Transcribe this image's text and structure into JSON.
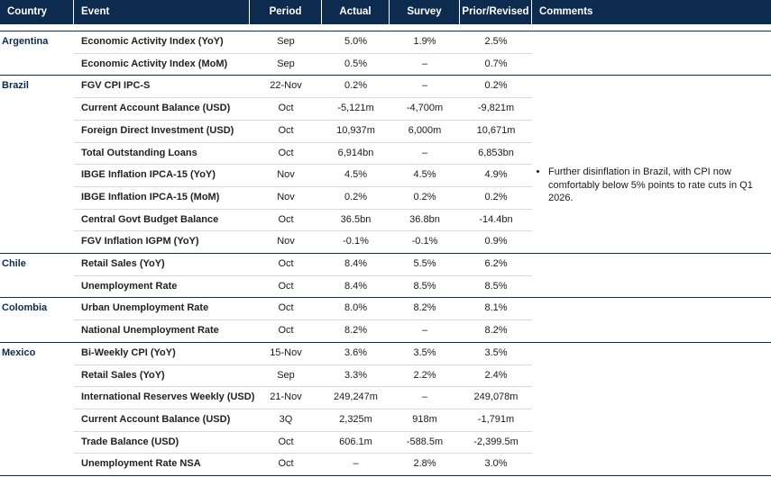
{
  "header": {
    "columns": [
      "Country",
      "Event",
      "Period",
      "Actual",
      "Survey",
      "Prior/Revised",
      "Comments"
    ]
  },
  "groups": [
    {
      "country": "Argentina",
      "rows": [
        [
          "Economic Activity Index (YoY)",
          "Sep",
          "5.0%",
          "1.9%",
          "2.5%"
        ],
        [
          "Economic Activity Index (MoM)",
          "Sep",
          "0.5%",
          "–",
          "0.7%"
        ]
      ]
    },
    {
      "country": "Brazil",
      "rows": [
        [
          "FGV CPI IPC-S",
          "22-Nov",
          "0.2%",
          "–",
          "0.2%"
        ],
        [
          "Current Account Balance (USD)",
          "Oct",
          "-5,121m",
          "-4,700m",
          "-9,821m"
        ],
        [
          "Foreign Direct Investment (USD)",
          "Oct",
          "10,937m",
          "6,000m",
          "10,671m"
        ],
        [
          "Total Outstanding Loans",
          "Oct",
          "6,914bn",
          "–",
          "6,853bn"
        ],
        [
          "IBGE Inflation IPCA-15 (YoY)",
          "Nov",
          "4.5%",
          "4.5%",
          "4.9%"
        ],
        [
          "IBGE Inflation IPCA-15 (MoM)",
          "Nov",
          "0.2%",
          "0.2%",
          "0.2%"
        ],
        [
          "Central Govt Budget Balance",
          "Oct",
          "36.5bn",
          "36.8bn",
          "-14.4bn"
        ],
        [
          "FGV Inflation IGPM (YoY)",
          "Nov",
          "-0.1%",
          "-0.1%",
          "0.9%"
        ]
      ]
    },
    {
      "country": "Chile",
      "rows": [
        [
          "Retail Sales (YoY)",
          "Oct",
          "8.4%",
          "5.5%",
          "6.2%"
        ],
        [
          "Unemployment Rate",
          "Oct",
          "8.4%",
          "8.5%",
          "8.5%"
        ]
      ]
    },
    {
      "country": "Colombia",
      "rows": [
        [
          "Urban Unemployment Rate",
          "Oct",
          "8.0%",
          "8.2%",
          "8.1%"
        ],
        [
          "National Unemployment Rate",
          "Oct",
          "8.2%",
          "–",
          "8.2%"
        ]
      ]
    },
    {
      "country": "Mexico",
      "rows": [
        [
          "Bi-Weekly CPI (YoY)",
          "15-Nov",
          "3.6%",
          "3.5%",
          "3.5%"
        ],
        [
          "Retail Sales (YoY)",
          "Sep",
          "3.3%",
          "2.2%",
          "2.4%"
        ],
        [
          "International Reserves Weekly (USD)",
          "21-Nov",
          "249,247m",
          "–",
          "249,078m"
        ],
        [
          "Current Account Balance (USD)",
          "3Q",
          "2,325m",
          "918m",
          "-1,791m"
        ],
        [
          "Trade Balance (USD)",
          "Oct",
          "606.1m",
          "-588.5m",
          "-2,399.5m"
        ],
        [
          "Unemployment Rate NSA",
          "Oct",
          "–",
          "2.8%",
          "3.0%"
        ]
      ]
    }
  ],
  "comment": "Further disinflation in Brazil, with CPI now comfortably below 5% points to rate cuts in Q1 2026."
}
